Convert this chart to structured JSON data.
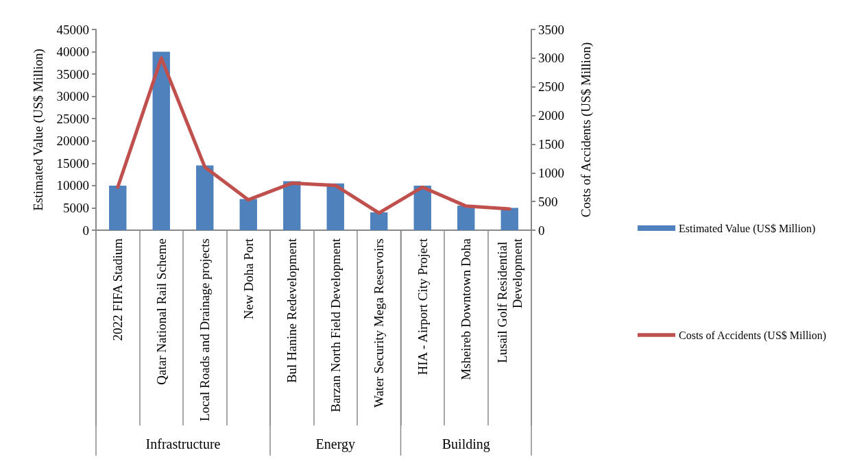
{
  "chart_data": {
    "type": "bar",
    "categories": [
      "2022 FIFA Stadium",
      "Qatar National Rail Scheme",
      "Local Roads and Drainage projects",
      "New Doha Port",
      "Bul Hanine Redevelopment",
      "Barzan North Field Development",
      "Water Security Mega Reservoirs",
      "HIA - Airport City Project",
      "Msheireb Downtown Doha",
      "Lusail Golf Residential Development"
    ],
    "series": [
      {
        "name": "Estimated Value (US$ Million)",
        "color": "#4f81bd",
        "values": [
          10000,
          40000,
          14500,
          7000,
          11000,
          10500,
          4000,
          10000,
          5500,
          5000
        ]
      },
      {
        "name": "Costs of Accidents (US$ Million)",
        "type": "line",
        "axis": "y2",
        "color": "#c0504d",
        "values": [
          750,
          3000,
          1100,
          530,
          820,
          780,
          300,
          750,
          420,
          370
        ]
      }
    ],
    "ylabel": "Estimated Value (US$ Million)",
    "y2label": "Costs of Accidents (US$ Million)",
    "ylim": [
      0,
      45000
    ],
    "yticks": [
      0,
      5000,
      10000,
      15000,
      20000,
      25000,
      30000,
      35000,
      40000,
      45000
    ],
    "y2lim": [
      0,
      3500
    ],
    "y2ticks": [
      0,
      500,
      1000,
      1500,
      2000,
      2500,
      3000,
      3500
    ],
    "annotations": [
      "Infrastructure",
      "Energy",
      "Building"
    ],
    "legend": "right",
    "grid": false,
    "marker": "none",
    "line_style": "solid"
  }
}
